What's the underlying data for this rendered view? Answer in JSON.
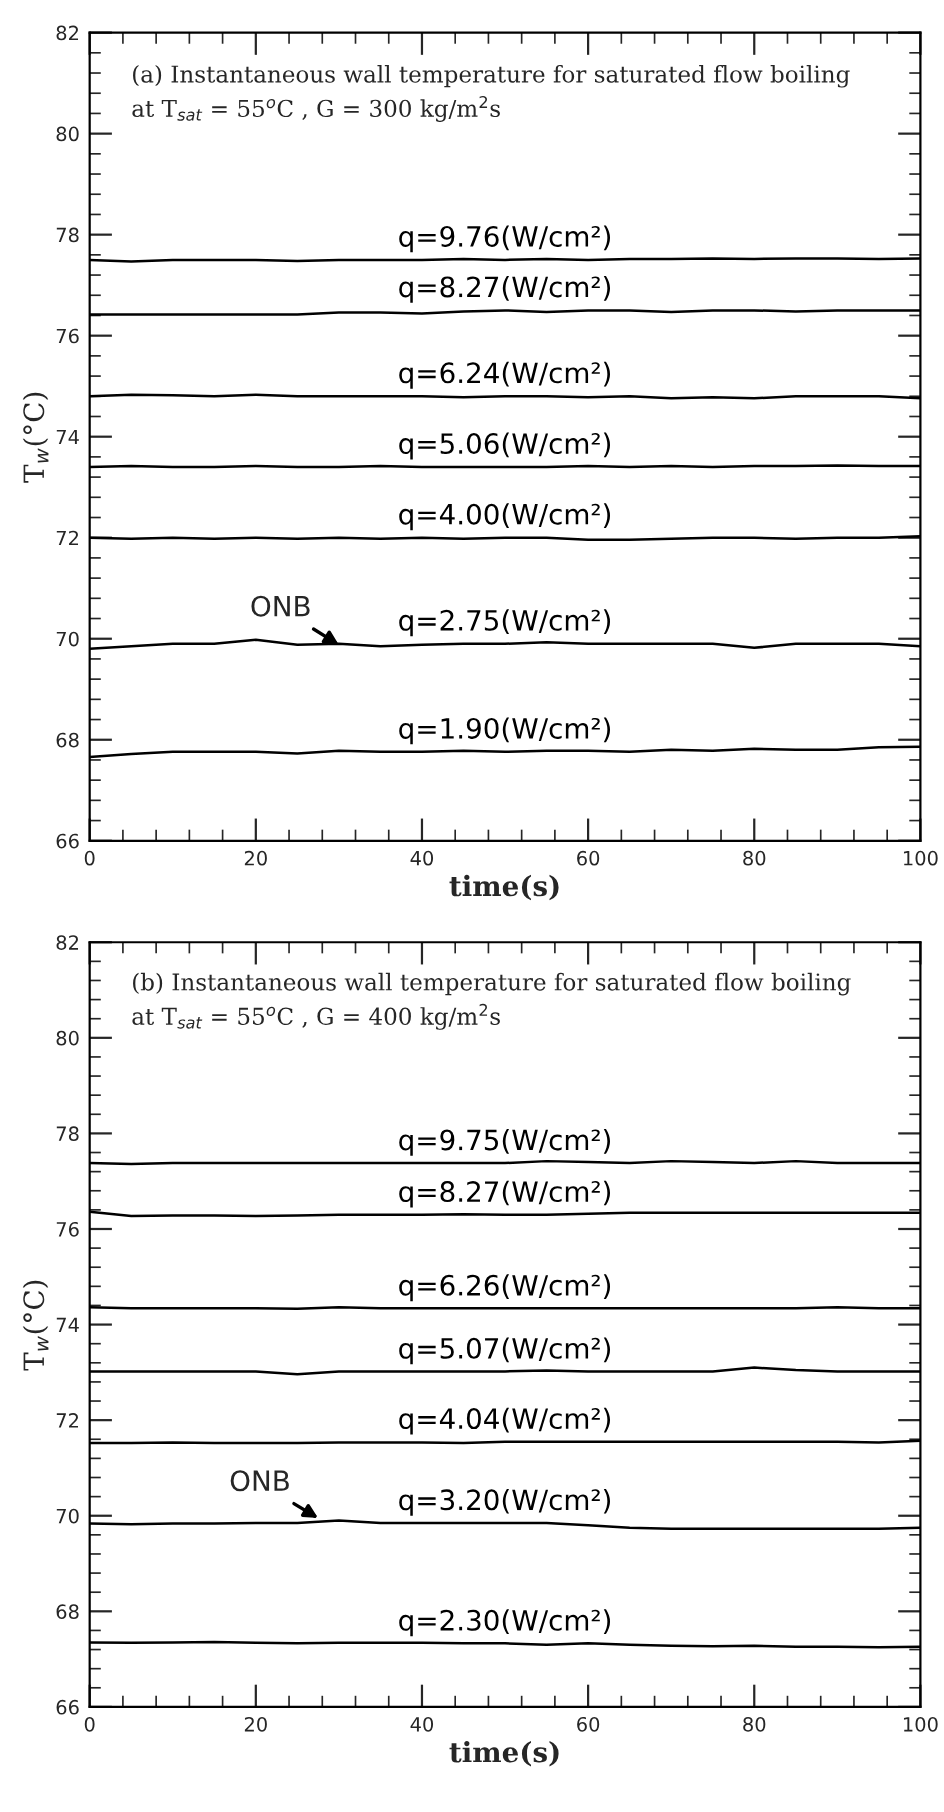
{
  "chart_data": [
    {
      "type": "line",
      "title": "(a) Instantaneous wall temperature for saturated flow boiling\nat T$_{sat}$ = 55$^{o}$C , G = 300 kg/m$^{2}$s",
      "xlabel": "time(s)",
      "ylabel": "T$_{w}$(°C)",
      "x": [
        0,
        5,
        10,
        15,
        20,
        25,
        30,
        35,
        40,
        45,
        50,
        55,
        60,
        65,
        70,
        75,
        80,
        85,
        90,
        95,
        100
      ],
      "series": [
        {
          "name": "q=9.76(W/cm²)",
          "color": "#000000",
          "values": [
            77.5,
            77.47,
            77.5,
            77.5,
            77.5,
            77.48,
            77.5,
            77.5,
            77.5,
            77.52,
            77.5,
            77.52,
            77.5,
            77.52,
            77.52,
            77.53,
            77.52,
            77.53,
            77.53,
            77.52,
            77.53
          ]
        },
        {
          "name": "q=8.27(W/cm²)",
          "color": "#000000",
          "values": [
            76.42,
            76.42,
            76.42,
            76.42,
            76.42,
            76.42,
            76.46,
            76.46,
            76.44,
            76.48,
            76.5,
            76.47,
            76.5,
            76.5,
            76.47,
            76.5,
            76.5,
            76.48,
            76.5,
            76.5,
            76.5
          ]
        },
        {
          "name": "q=6.24(W/cm²)",
          "color": "#000000",
          "values": [
            74.8,
            74.83,
            74.82,
            74.8,
            74.83,
            74.8,
            74.8,
            74.8,
            74.8,
            74.78,
            74.8,
            74.8,
            74.78,
            74.8,
            74.76,
            74.78,
            74.76,
            74.8,
            74.8,
            74.8,
            74.76
          ]
        },
        {
          "name": "q=5.06(W/cm²)",
          "color": "#000000",
          "values": [
            73.4,
            73.42,
            73.4,
            73.4,
            73.42,
            73.4,
            73.4,
            73.42,
            73.4,
            73.4,
            73.4,
            73.4,
            73.42,
            73.4,
            73.42,
            73.4,
            73.42,
            73.42,
            73.43,
            73.42,
            73.42
          ]
        },
        {
          "name": "q=4.00(W/cm²)",
          "color": "#000000",
          "values": [
            72.0,
            71.98,
            72.0,
            71.98,
            72.0,
            71.98,
            72.0,
            71.98,
            72.0,
            71.98,
            72.0,
            72.0,
            71.96,
            71.96,
            71.98,
            72.0,
            72.0,
            71.98,
            72.0,
            72.0,
            72.03
          ]
        },
        {
          "name": "q=2.75(W/cm²)",
          "color": "#000000",
          "values": [
            69.8,
            69.85,
            69.9,
            69.9,
            69.98,
            69.88,
            69.9,
            69.85,
            69.88,
            69.9,
            69.9,
            69.93,
            69.9,
            69.9,
            69.9,
            69.9,
            69.82,
            69.9,
            69.9,
            69.9,
            69.85
          ]
        },
        {
          "name": "q=1.90(W/cm²)",
          "color": "#000000",
          "values": [
            67.66,
            67.72,
            67.76,
            67.76,
            67.76,
            67.73,
            67.78,
            67.76,
            67.76,
            67.78,
            67.76,
            67.78,
            67.78,
            67.76,
            67.8,
            67.78,
            67.82,
            67.8,
            67.8,
            67.85,
            67.86
          ]
        }
      ],
      "xlim": [
        0,
        100
      ],
      "xticks": [
        0,
        20,
        40,
        60,
        80,
        100
      ],
      "ylim": [
        66,
        82
      ],
      "yticks": [
        66,
        68,
        70,
        72,
        74,
        76,
        78,
        80,
        82
      ],
      "annotations": [
        {
          "text": "ONB",
          "x": 30,
          "y": 69.88
        }
      ],
      "grid": false,
      "marker": "none",
      "line_style": "solid"
    },
    {
      "type": "line",
      "title": "(b) Instantaneous wall temperature for saturated flow boiling\nat T$_{sat}$ = 55$^{o}$C , G = 400 kg/m$^{2}$s",
      "xlabel": "time(s)",
      "ylabel": "T$_{w}$(°C)",
      "x": [
        0,
        5,
        10,
        15,
        20,
        25,
        30,
        35,
        40,
        45,
        50,
        55,
        60,
        65,
        70,
        75,
        80,
        85,
        90,
        95,
        100
      ],
      "series": [
        {
          "name": "q=9.75(W/cm²)",
          "color": "#000000",
          "values": [
            77.38,
            77.36,
            77.38,
            77.38,
            77.38,
            77.38,
            77.38,
            77.38,
            77.38,
            77.38,
            77.38,
            77.42,
            77.4,
            77.38,
            77.42,
            77.4,
            77.38,
            77.42,
            77.38,
            77.38,
            77.38
          ]
        },
        {
          "name": "q=8.27(W/cm²)",
          "color": "#000000",
          "values": [
            76.36,
            76.27,
            76.28,
            76.28,
            76.27,
            76.28,
            76.3,
            76.3,
            76.3,
            76.31,
            76.3,
            76.3,
            76.32,
            76.34,
            76.34,
            76.34,
            76.34,
            76.34,
            76.34,
            76.34,
            76.34
          ]
        },
        {
          "name": "q=6.26(W/cm²)",
          "color": "#000000",
          "values": [
            74.36,
            74.34,
            74.34,
            74.34,
            74.34,
            74.33,
            74.36,
            74.34,
            74.34,
            74.34,
            74.34,
            74.34,
            74.34,
            74.34,
            74.34,
            74.34,
            74.34,
            74.34,
            74.36,
            74.34,
            74.34
          ]
        },
        {
          "name": "q=5.07(W/cm²)",
          "color": "#000000",
          "values": [
            73.02,
            73.02,
            73.02,
            73.02,
            73.02,
            72.96,
            73.02,
            73.02,
            73.02,
            73.02,
            73.02,
            73.04,
            73.02,
            73.02,
            73.02,
            73.02,
            73.1,
            73.05,
            73.02,
            73.02,
            73.02
          ]
        },
        {
          "name": "q=4.04(W/cm²)",
          "color": "#000000",
          "values": [
            71.52,
            71.52,
            71.53,
            71.52,
            71.52,
            71.52,
            71.53,
            71.53,
            71.53,
            71.52,
            71.55,
            71.55,
            71.55,
            71.55,
            71.55,
            71.55,
            71.55,
            71.55,
            71.55,
            71.53,
            71.57
          ]
        },
        {
          "name": "q=3.20(W/cm²)",
          "color": "#000000",
          "values": [
            69.84,
            69.82,
            69.84,
            69.84,
            69.85,
            69.85,
            69.9,
            69.85,
            69.85,
            69.85,
            69.85,
            69.85,
            69.8,
            69.75,
            69.73,
            69.73,
            69.73,
            69.73,
            69.73,
            69.73,
            69.75
          ]
        },
        {
          "name": "q=2.30(W/cm²)",
          "color": "#000000",
          "values": [
            67.35,
            67.34,
            67.35,
            67.36,
            67.34,
            67.33,
            67.34,
            67.34,
            67.34,
            67.33,
            67.33,
            67.3,
            67.33,
            67.3,
            67.28,
            67.27,
            67.28,
            67.26,
            67.26,
            67.25,
            67.26
          ]
        }
      ],
      "xlim": [
        0,
        100
      ],
      "xticks": [
        0,
        20,
        40,
        60,
        80,
        100
      ],
      "ylim": [
        66,
        82
      ],
      "yticks": [
        66,
        68,
        70,
        72,
        74,
        76,
        78,
        80,
        82
      ],
      "annotations": [
        {
          "text": "ONB",
          "x": 27.5,
          "y": 69.95
        }
      ],
      "grid": false,
      "marker": "none",
      "line_style": "solid"
    }
  ]
}
